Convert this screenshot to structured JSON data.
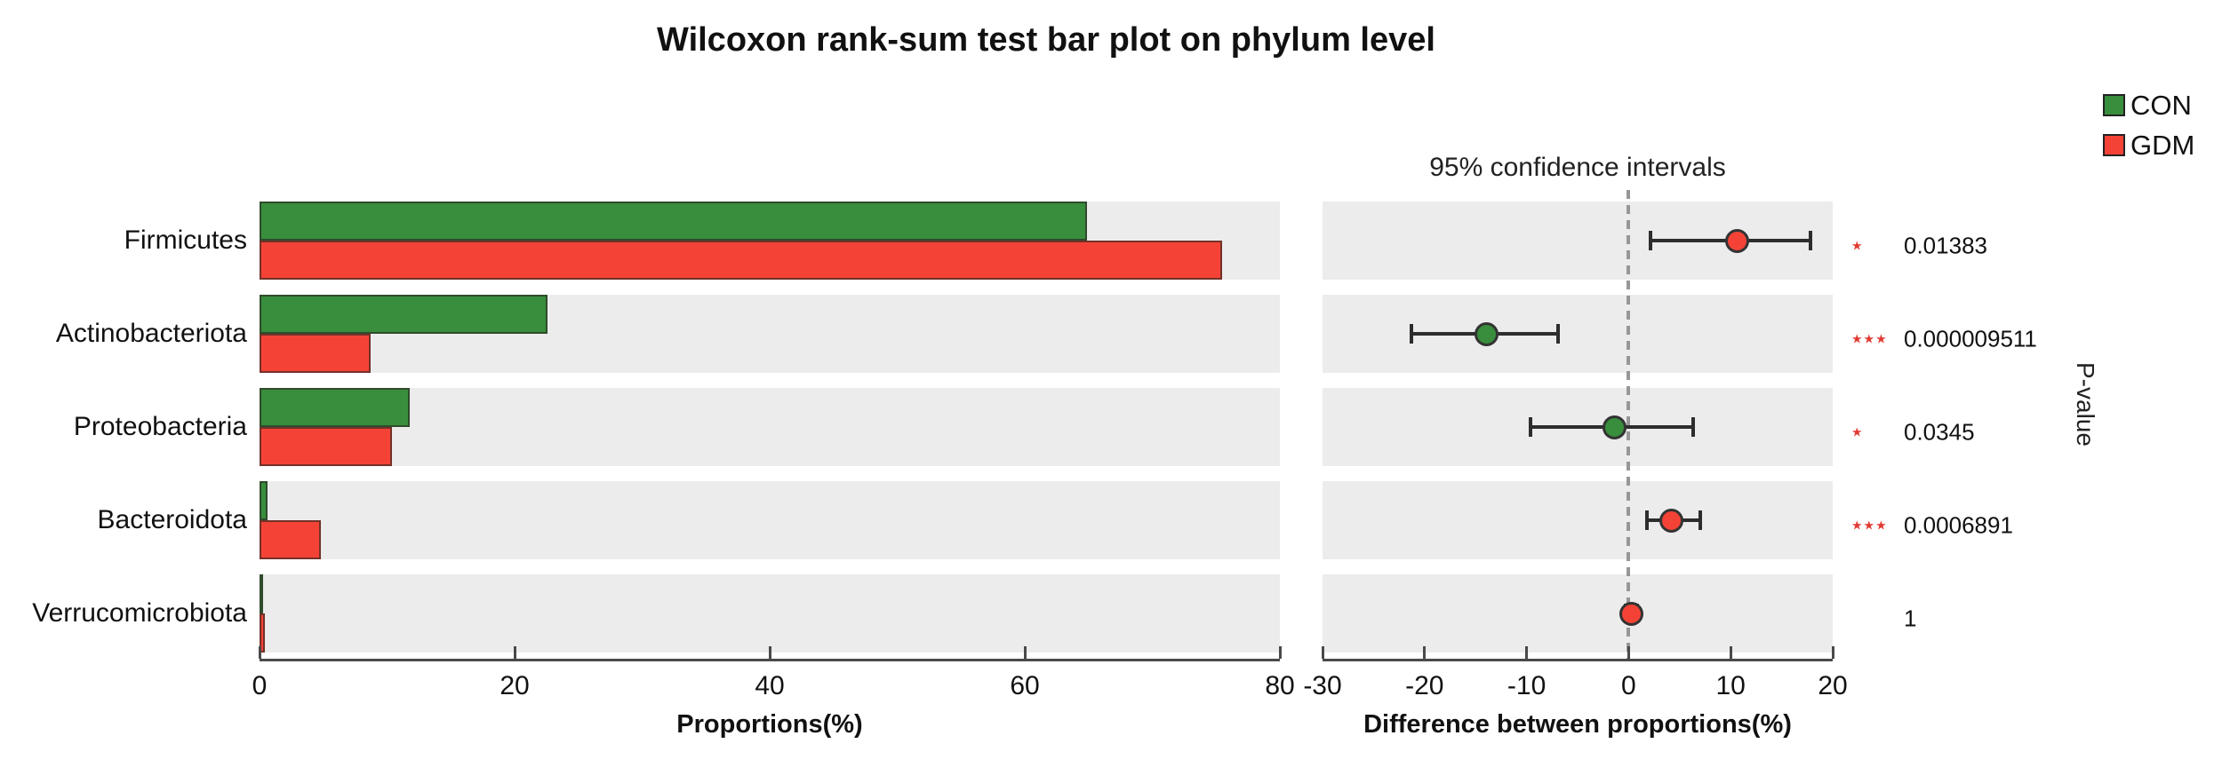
{
  "title": "Wilcoxon rank-sum test bar plot on phylum level",
  "legend": [
    {
      "label": "CON",
      "color": "#388e3c"
    },
    {
      "label": "GDM",
      "color": "#f44336"
    }
  ],
  "colors": {
    "con_green": "#388e3c",
    "gdm_red": "#f44336",
    "band_grey": "#ececec",
    "significance_red": "#e23a31",
    "axis": "#4a4a4a"
  },
  "chart_data": {
    "type": "bar",
    "orientation": "horizontal",
    "title": "Wilcoxon rank-sum test bar plot on phylum level",
    "categories": [
      "Firmicutes",
      "Actinobacteriota",
      "Proteobacteria",
      "Bacteroidota",
      "Verrucomicrobiota"
    ],
    "series": [
      {
        "name": "CON",
        "color": "#388e3c",
        "values": [
          64.9,
          22.6,
          11.8,
          0.6,
          0.15
        ]
      },
      {
        "name": "GDM",
        "color": "#f44336",
        "values": [
          75.5,
          8.7,
          10.4,
          4.8,
          0.45
        ]
      }
    ],
    "proportions_axis": {
      "label": "Proportions(%)",
      "ticks": [
        0,
        20,
        40,
        60,
        80
      ],
      "range": [
        0,
        80
      ]
    },
    "difference_axis": {
      "panel_title": "95% confidence intervals",
      "label": "Difference between proportions(%)",
      "ticks": [
        -30,
        -20,
        -10,
        0,
        10,
        20
      ],
      "range": [
        -30,
        20
      ],
      "values": [
        10.6,
        -13.9,
        -1.4,
        4.2,
        0.3
      ],
      "ci_low": [
        2.1,
        -21.3,
        -9.6,
        1.8,
        -0.3
      ],
      "ci_high": [
        17.8,
        -6.9,
        6.3,
        7.0,
        0.8
      ],
      "dot_colors": [
        "#f44336",
        "#388e3c",
        "#388e3c",
        "#f44336",
        "#f44336"
      ]
    },
    "p_value_axis_label": "P-value",
    "p_values": [
      "0.01383",
      "0.000009511",
      "0.0345",
      "0.0006891",
      "1"
    ],
    "significance": [
      "★",
      "★★★",
      "★",
      "★★★",
      ""
    ]
  }
}
